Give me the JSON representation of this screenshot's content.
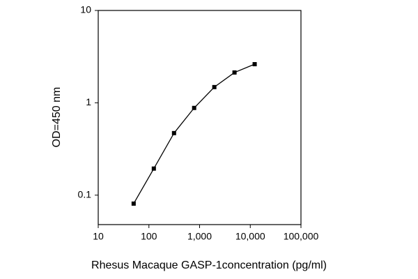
{
  "chart_data": {
    "type": "line",
    "xlabel": "Rhesus Macaque GASP-1concentration (pg/ml)",
    "ylabel": "OD=450 nm",
    "x": [
      50,
      125,
      313,
      781,
      1953,
      4883,
      12207
    ],
    "series": [
      {
        "color": "#000000",
        "values": [
          0.081,
          0.194,
          0.47,
          0.88,
          1.48,
          2.13,
          2.62
        ]
      }
    ],
    "xscale": "log",
    "yscale": "log",
    "xlim": [
      10,
      100000
    ],
    "ylim": [
      0.048,
      10
    ],
    "xticks": [
      10,
      100,
      {
        "value": 1000,
        "label": "1,000"
      },
      {
        "value": 10000,
        "label": "10,000"
      },
      {
        "value": 100000,
        "label": "100,000"
      }
    ],
    "yticks": [
      0.1,
      1,
      10
    ]
  }
}
